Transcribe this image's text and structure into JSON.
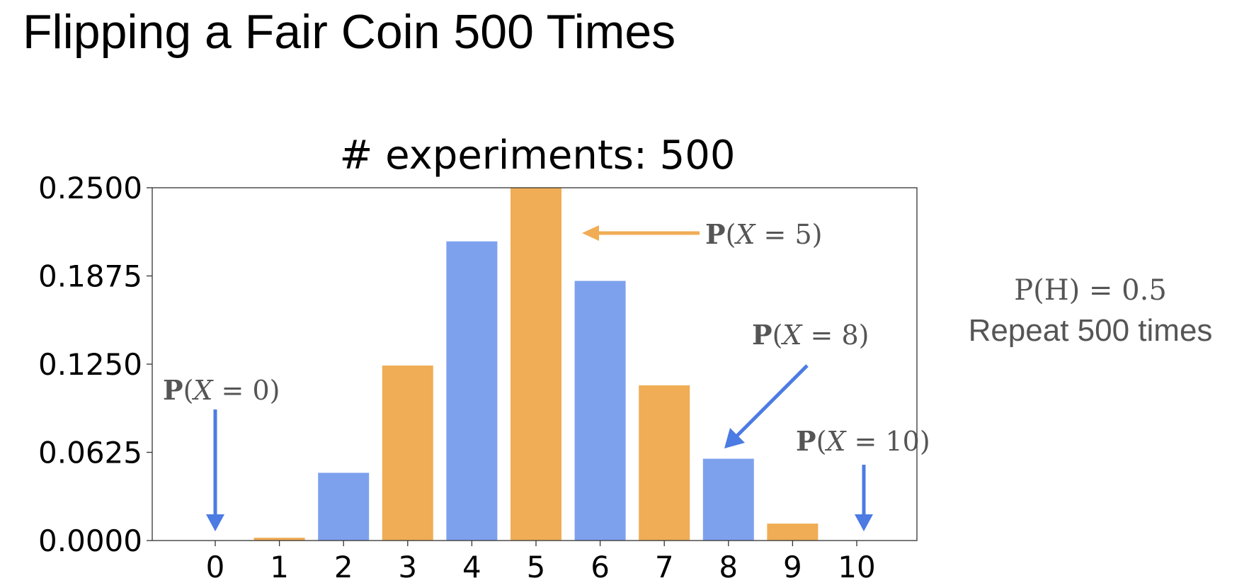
{
  "slide": {
    "title": "Flipping a Fair Coin 500 Times"
  },
  "side_note": {
    "probability": "P(H) = 0.5",
    "repeat": "Repeat 500 times"
  },
  "annotations": {
    "x0": {
      "P": "P",
      "open": "(",
      "var": "X",
      "rest": " = 0)"
    },
    "x5": {
      "P": "P",
      "open": "(",
      "var": "X",
      "rest": " = 5)"
    },
    "x8": {
      "P": "P",
      "open": "(",
      "var": "X",
      "rest": " = 8)"
    },
    "x10": {
      "P": "P",
      "open": "(",
      "var": "X",
      "rest": " = 10)"
    }
  },
  "colors": {
    "blue": "#7EA1EE",
    "orange": "#F0AD55",
    "arrow_blue": "#4C7BE3",
    "arrow_orange": "#F0AD55"
  },
  "chart_data": {
    "type": "bar",
    "title": "# experiments: 500",
    "xlabel": "",
    "ylabel": "",
    "categories": [
      "0",
      "1",
      "2",
      "3",
      "4",
      "5",
      "6",
      "7",
      "8",
      "9",
      "10"
    ],
    "values": [
      0.0,
      0.002,
      0.048,
      0.124,
      0.212,
      0.25,
      0.184,
      0.11,
      0.058,
      0.012,
      0.0
    ],
    "bar_colors": [
      "blue",
      "orange",
      "blue",
      "orange",
      "blue",
      "orange",
      "blue",
      "orange",
      "blue",
      "orange",
      "blue"
    ],
    "yticks": [
      "0.0000",
      "0.0625",
      "0.1250",
      "0.1875",
      "0.2500"
    ],
    "ylim": [
      0,
      0.25
    ],
    "grid": false,
    "legend": "none"
  }
}
